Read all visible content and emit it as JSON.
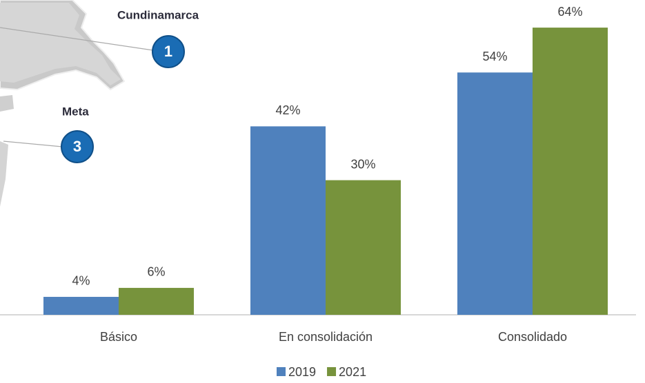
{
  "chart_data": {
    "type": "bar",
    "categories": [
      "Básico",
      "En consolidación",
      "Consolidado"
    ],
    "series": [
      {
        "name": "2019",
        "color": "#4f81bd",
        "values": [
          4,
          42,
          54
        ],
        "value_labels": [
          "4%",
          "42%",
          "54%"
        ]
      },
      {
        "name": "2021",
        "color": "#77933c",
        "values": [
          6,
          30,
          64
        ],
        "value_labels": [
          "6%",
          "30%",
          "64%"
        ]
      }
    ],
    "ylim": [
      0,
      70
    ],
    "legend": "bottom",
    "annotations": [
      {
        "text": "Cundinamarca",
        "label": "1"
      },
      {
        "text": "Meta",
        "label": "3"
      }
    ]
  }
}
